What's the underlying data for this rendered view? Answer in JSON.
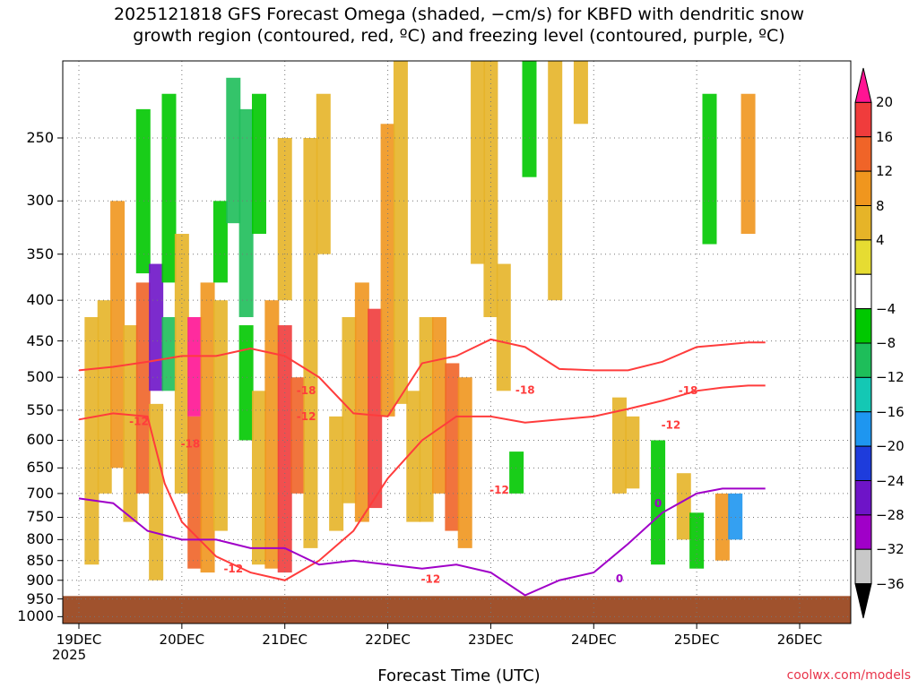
{
  "title": {
    "line1": "2025121818 GFS Forecast Omega (shaded, −cm/s) for KBFD with dendritic snow",
    "line2": "growth region (contoured, red, ºC) and freezing level (contoured, purple, ºC)"
  },
  "chart_data": {
    "type": "heatmap",
    "title": "2025121818 GFS Forecast Omega (shaded, −cm/s) for KBFD with dendritic snow growth region (contoured, red, ºC) and freezing level (contoured, purple, ºC)",
    "xlabel": "Forecast Time (UTC)",
    "ylabel": "",
    "x_ticks": [
      "19DEC",
      "20DEC",
      "21DEC",
      "22DEC",
      "23DEC",
      "24DEC",
      "25DEC",
      "26DEC"
    ],
    "x_year": "2025",
    "x_range_hours": [
      0,
      180
    ],
    "y_ticks": [
      250,
      300,
      350,
      400,
      450,
      500,
      550,
      600,
      650,
      700,
      750,
      800,
      850,
      900,
      950,
      1000
    ],
    "y_range_hpa": [
      200,
      1020
    ],
    "colorbar": {
      "labels": [
        "20",
        "16",
        "12",
        "8",
        "4",
        "−4",
        "−8",
        "−12",
        "−16",
        "−20",
        "−24",
        "−28",
        "−32",
        "−36"
      ],
      "colors": [
        "#ff1493",
        "#f03c3c",
        "#f06428",
        "#f0961e",
        "#e6b428",
        "#e6dc32",
        "#ffffff",
        "#00c800",
        "#1ebe5a",
        "#14c8b4",
        "#1e96f0",
        "#1e3cdc",
        "#6e14c8",
        "#a000c8",
        "#c8c8c8",
        "#000000"
      ]
    },
    "omega_cells": [
      {
        "t": 3,
        "p0": 420,
        "p1": 860,
        "v": 6
      },
      {
        "t": 6,
        "p0": 400,
        "p1": 700,
        "v": 7
      },
      {
        "t": 9,
        "p0": 300,
        "p1": 650,
        "v": 10
      },
      {
        "t": 12,
        "p0": 430,
        "p1": 760,
        "v": 6
      },
      {
        "t": 15,
        "p0": 380,
        "p1": 700,
        "v": 14
      },
      {
        "t": 15,
        "p0": 230,
        "p1": 370,
        "v": -8
      },
      {
        "t": 18,
        "p0": 360,
        "p1": 520,
        "v": -28
      },
      {
        "t": 18,
        "p0": 540,
        "p1": 900,
        "v": 6
      },
      {
        "t": 21,
        "p0": 420,
        "p1": 520,
        "v": -12
      },
      {
        "t": 21,
        "p0": 220,
        "p1": 380,
        "v": -8
      },
      {
        "t": 24,
        "p0": 330,
        "p1": 700,
        "v": 5
      },
      {
        "t": 27,
        "p0": 420,
        "p1": 560,
        "v": 20
      },
      {
        "t": 27,
        "p0": 560,
        "p1": 870,
        "v": 12
      },
      {
        "t": 30,
        "p0": 380,
        "p1": 880,
        "v": 8
      },
      {
        "t": 33,
        "p0": 300,
        "p1": 380,
        "v": -8
      },
      {
        "t": 33,
        "p0": 400,
        "p1": 780,
        "v": 6
      },
      {
        "t": 36,
        "p0": 210,
        "p1": 320,
        "v": -14
      },
      {
        "t": 39,
        "p0": 230,
        "p1": 420,
        "v": -12
      },
      {
        "t": 39,
        "p0": 430,
        "p1": 600,
        "v": -10
      },
      {
        "t": 42,
        "p0": 220,
        "p1": 330,
        "v": -8
      },
      {
        "t": 42,
        "p0": 520,
        "p1": 860,
        "v": 6
      },
      {
        "t": 45,
        "p0": 400,
        "p1": 870,
        "v": 10
      },
      {
        "t": 48,
        "p0": 430,
        "p1": 880,
        "v": 16
      },
      {
        "t": 48,
        "p0": 250,
        "p1": 400,
        "v": 6
      },
      {
        "t": 51,
        "p0": 500,
        "p1": 700,
        "v": 12
      },
      {
        "t": 54,
        "p0": 250,
        "p1": 820,
        "v": 6
      },
      {
        "t": 57,
        "p0": 220,
        "p1": 350,
        "v": 5
      },
      {
        "t": 60,
        "p0": 560,
        "p1": 780,
        "v": 6
      },
      {
        "t": 63,
        "p0": 420,
        "p1": 720,
        "v": 5
      },
      {
        "t": 66,
        "p0": 380,
        "p1": 760,
        "v": 10
      },
      {
        "t": 69,
        "p0": 410,
        "p1": 730,
        "v": 16
      },
      {
        "t": 72,
        "p0": 240,
        "p1": 560,
        "v": 8
      },
      {
        "t": 75,
        "p0": 200,
        "p1": 540,
        "v": 5
      },
      {
        "t": 78,
        "p0": 520,
        "p1": 760,
        "v": 6
      },
      {
        "t": 81,
        "p0": 420,
        "p1": 760,
        "v": 6
      },
      {
        "t": 84,
        "p0": 420,
        "p1": 700,
        "v": 8
      },
      {
        "t": 87,
        "p0": 480,
        "p1": 780,
        "v": 12
      },
      {
        "t": 90,
        "p0": 500,
        "p1": 820,
        "v": 8
      },
      {
        "t": 93,
        "p0": 200,
        "p1": 360,
        "v": 6
      },
      {
        "t": 96,
        "p0": 200,
        "p1": 420,
        "v": 5
      },
      {
        "t": 99,
        "p0": 360,
        "p1": 520,
        "v": 5
      },
      {
        "t": 102,
        "p0": 620,
        "p1": 700,
        "v": -8
      },
      {
        "t": 105,
        "p0": 200,
        "p1": 280,
        "v": -8
      },
      {
        "t": 111,
        "p0": 200,
        "p1": 400,
        "v": 5
      },
      {
        "t": 117,
        "p0": 200,
        "p1": 240,
        "v": 5
      },
      {
        "t": 126,
        "p0": 530,
        "p1": 700,
        "v": 5
      },
      {
        "t": 129,
        "p0": 560,
        "p1": 690,
        "v": 7
      },
      {
        "t": 135,
        "p0": 600,
        "p1": 860,
        "v": -8
      },
      {
        "t": 141,
        "p0": 660,
        "p1": 800,
        "v": 6
      },
      {
        "t": 144,
        "p0": 740,
        "p1": 870,
        "v": -8
      },
      {
        "t": 147,
        "p0": 220,
        "p1": 340,
        "v": -8
      },
      {
        "t": 150,
        "p0": 700,
        "p1": 850,
        "v": 8
      },
      {
        "t": 153,
        "p0": 700,
        "p1": 800,
        "v": -20
      },
      {
        "t": 156,
        "p0": 220,
        "p1": 330,
        "v": 8
      }
    ],
    "ground": {
      "color": "#a0522d"
    },
    "contours": [
      {
        "label": "-18",
        "color": "#ff3c3c",
        "points": [
          [
            0,
            490
          ],
          [
            8,
            485
          ],
          [
            16,
            478
          ],
          [
            24,
            470
          ],
          [
            32,
            470
          ],
          [
            40,
            460
          ],
          [
            48,
            470
          ],
          [
            56,
            500
          ],
          [
            64,
            555
          ],
          [
            72,
            560
          ],
          [
            80,
            480
          ],
          [
            88,
            470
          ],
          [
            96,
            448
          ],
          [
            104,
            458
          ],
          [
            112,
            488
          ],
          [
            120,
            490
          ],
          [
            128,
            490
          ],
          [
            136,
            478
          ],
          [
            144,
            458
          ],
          [
            150,
            455
          ],
          [
            156,
            452
          ],
          [
            160,
            452
          ]
        ]
      },
      {
        "label": "-12",
        "color": "#ff3c3c",
        "points": [
          [
            0,
            565
          ],
          [
            8,
            555
          ],
          [
            16,
            560
          ],
          [
            20,
            680
          ],
          [
            24,
            760
          ],
          [
            32,
            840
          ],
          [
            40,
            880
          ],
          [
            48,
            900
          ],
          [
            56,
            850
          ],
          [
            64,
            780
          ],
          [
            72,
            670
          ],
          [
            80,
            600
          ],
          [
            88,
            560
          ],
          [
            96,
            560
          ],
          [
            104,
            570
          ],
          [
            112,
            565
          ],
          [
            120,
            560
          ],
          [
            128,
            548
          ],
          [
            136,
            535
          ],
          [
            144,
            520
          ],
          [
            150,
            515
          ],
          [
            156,
            512
          ],
          [
            160,
            512
          ]
        ]
      },
      {
        "label": "0",
        "color": "#a000c8",
        "points": [
          [
            0,
            710
          ],
          [
            8,
            720
          ],
          [
            16,
            780
          ],
          [
            24,
            800
          ],
          [
            32,
            800
          ],
          [
            40,
            820
          ],
          [
            48,
            820
          ],
          [
            56,
            860
          ],
          [
            64,
            850
          ],
          [
            72,
            860
          ],
          [
            80,
            870
          ],
          [
            88,
            860
          ],
          [
            96,
            880
          ],
          [
            104,
            940
          ],
          [
            112,
            900
          ],
          [
            120,
            880
          ],
          [
            128,
            810
          ],
          [
            136,
            740
          ],
          [
            144,
            700
          ],
          [
            150,
            690
          ],
          [
            156,
            690
          ],
          [
            160,
            690
          ]
        ]
      }
    ],
    "contour_labels": [
      {
        "text": "-12",
        "t": 14,
        "p": 574
      },
      {
        "text": "-18",
        "t": 26,
        "p": 613
      },
      {
        "text": "-12",
        "t": 36,
        "p": 880
      },
      {
        "text": "-12",
        "t": 53,
        "p": 566
      },
      {
        "text": "-18",
        "t": 53,
        "p": 525
      },
      {
        "text": "-12",
        "t": 82,
        "p": 907
      },
      {
        "text": "-12",
        "t": 98,
        "p": 700
      },
      {
        "text": "-18",
        "t": 104,
        "p": 524
      },
      {
        "text": "-12",
        "t": 138,
        "p": 580
      },
      {
        "text": "-18",
        "t": 142,
        "p": 525
      },
      {
        "text": "0",
        "t": 126,
        "p": 905
      },
      {
        "text": "0",
        "t": 135,
        "p": 728
      }
    ]
  },
  "credit": "coolwx.com/models"
}
